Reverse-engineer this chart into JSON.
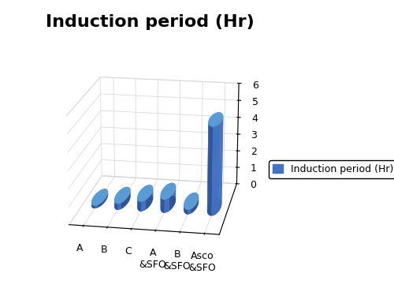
{
  "title": "Induction period (Hr)",
  "categories": [
    "A",
    "B",
    "C",
    "A\n&SFO",
    "B\n&SFO",
    "Asco\n&SFO"
  ],
  "values": [
    0.15,
    0.35,
    0.55,
    0.75,
    0.25,
    5.0
  ],
  "bar_color": "#4472C4",
  "bar_color_side": "#2F5597",
  "bar_color_top": "#5B9BD5",
  "ylim": [
    0,
    6
  ],
  "yticks": [
    0,
    1,
    2,
    3,
    4,
    5,
    6
  ],
  "legend_label": "Induction period (Hr)",
  "title_fontsize": 16,
  "tick_fontsize": 9,
  "legend_fontsize": 9,
  "background_color": "#ffffff",
  "elev": 18,
  "azim": -80
}
